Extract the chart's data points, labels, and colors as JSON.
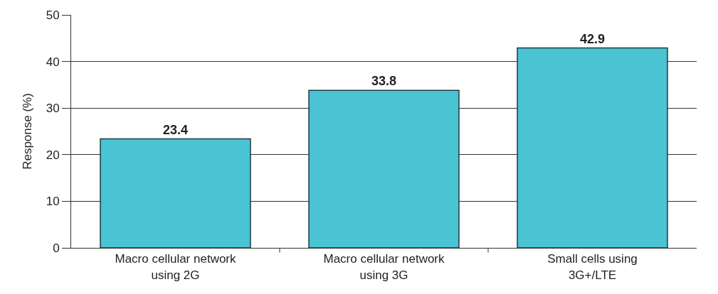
{
  "chart_data": {
    "type": "bar",
    "ylabel": "Response (%)",
    "categories": [
      "Macro cellular network\nusing 2G",
      "Macro cellular network\nusing 3G",
      "Small cells using\n3G+/LTE"
    ],
    "values": [
      23.4,
      33.8,
      42.9
    ],
    "color": "#4ac3d3",
    "ylim": [
      0,
      50
    ],
    "yticks": [
      0,
      10,
      20,
      30,
      40,
      50
    ],
    "grid": "y",
    "data_labels": true
  }
}
